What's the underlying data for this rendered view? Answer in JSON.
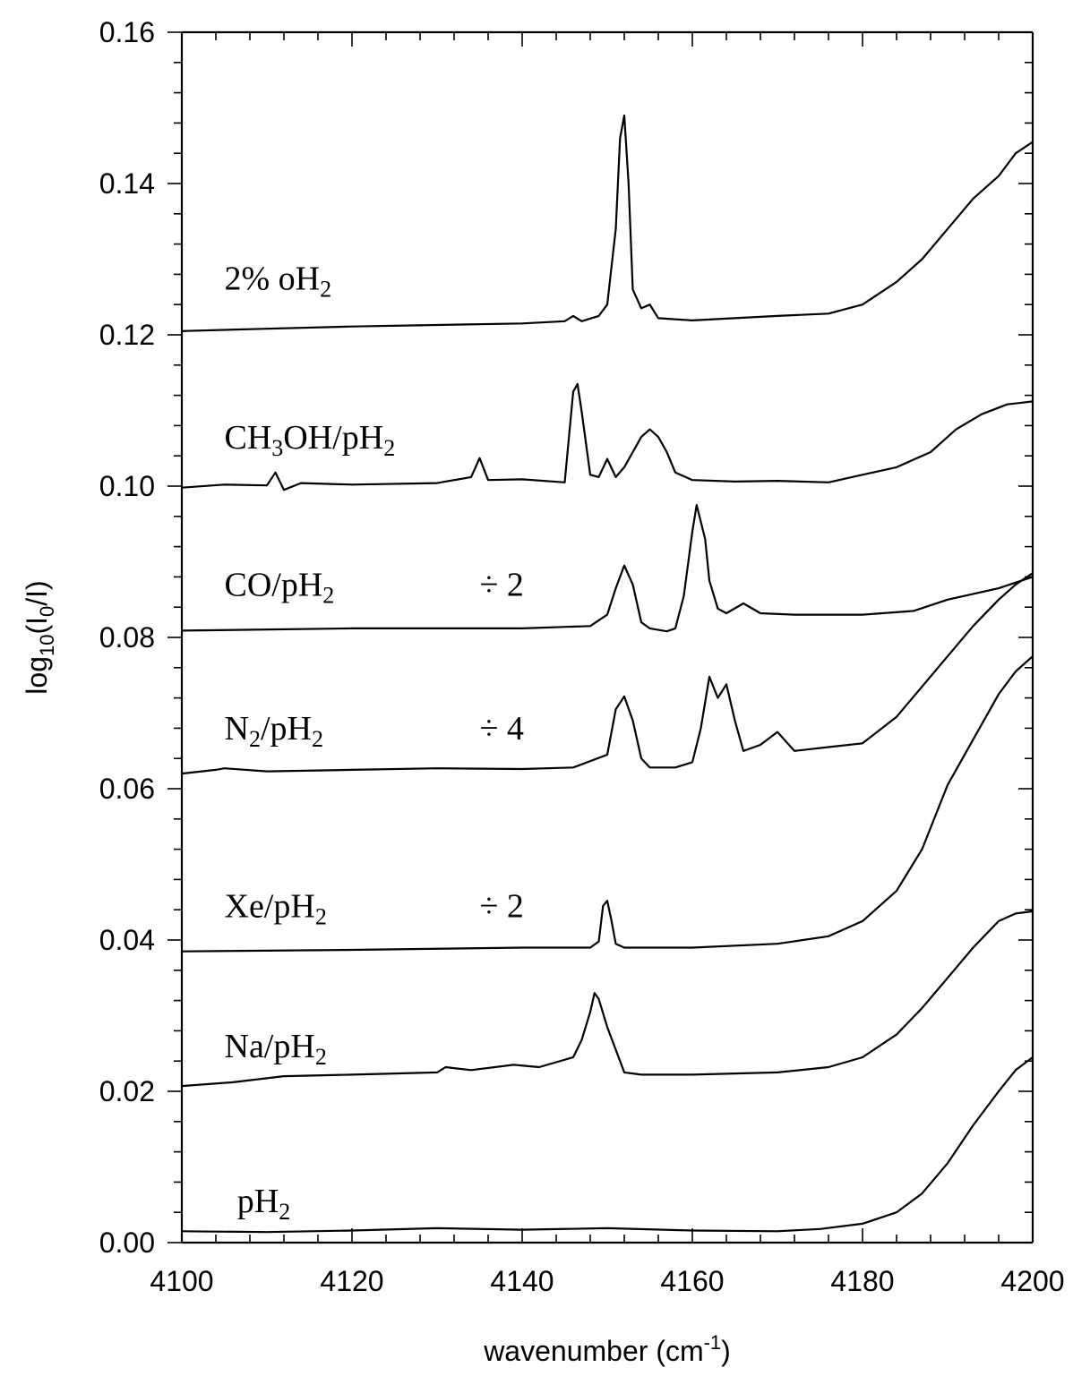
{
  "chart_data": {
    "type": "line",
    "xlabel": "wavenumber (cm",
    "xlabel_sup": "-1",
    "xlabel_tail": ")",
    "ylabel_main": "log",
    "ylabel_sub": "10",
    "ylabel_rest": "(I",
    "ylabel_sub2": "0",
    "ylabel_tail": "/I)",
    "xlim": [
      4100,
      4200
    ],
    "ylim": [
      0.0,
      0.16
    ],
    "x_ticks": [
      4100,
      4120,
      4140,
      4160,
      4180,
      4200
    ],
    "x_tick_labels": [
      "4100",
      "4120",
      "4140",
      "4160",
      "4180",
      "4200"
    ],
    "y_ticks": [
      0.0,
      0.02,
      0.04,
      0.06,
      0.08,
      0.1,
      0.12,
      0.14,
      0.16
    ],
    "y_tick_labels": [
      "0.00",
      "0.02",
      "0.04",
      "0.06",
      "0.08",
      "0.10",
      "0.12",
      "0.14",
      "0.16"
    ],
    "grid": false,
    "series": [
      {
        "name": "2% oH2",
        "label_main": "2% oH",
        "label_sub": "2",
        "label_tail": "",
        "scale_note": "",
        "label_x": 4105,
        "label_y": 0.126,
        "x": [
          4100,
          4110,
          4120,
          4130,
          4140,
          4145,
          4146,
          4147,
          4149,
          4150,
          4151,
          4151.5,
          4152,
          4152.5,
          4153,
          4154,
          4155,
          4156,
          4160,
          4170,
          4176,
          4180,
          4184,
          4187,
          4190,
          4193,
          4196,
          4198,
          4200
        ],
        "y": [
          0.1205,
          0.1208,
          0.1211,
          0.1213,
          0.1215,
          0.1218,
          0.1225,
          0.1218,
          0.1225,
          0.124,
          0.134,
          0.146,
          0.149,
          0.14,
          0.126,
          0.1235,
          0.124,
          0.1222,
          0.1219,
          0.1225,
          0.1228,
          0.124,
          0.127,
          0.13,
          0.134,
          0.138,
          0.141,
          0.144,
          0.1455
        ]
      },
      {
        "name": "CH3OH/pH2",
        "label_main": "CH",
        "label_sub": "3",
        "label_tail": "OH/pH",
        "label_sub_end": "2",
        "scale_note": "",
        "label_x": 4105,
        "label_y": 0.105,
        "x": [
          4100,
          4105,
          4110,
          4111,
          4112,
          4114,
          4120,
          4130,
          4134,
          4135,
          4136,
          4140,
          4145,
          4146,
          4146.5,
          4147,
          4148,
          4149,
          4150,
          4151,
          4152,
          4154,
          4155,
          4156,
          4157,
          4158,
          4160,
          4165,
          4170,
          4176,
          4180,
          4184,
          4188,
          4191,
          4194,
          4197,
          4200
        ],
        "y": [
          0.0998,
          0.1002,
          0.1001,
          0.1018,
          0.0995,
          0.1004,
          0.1002,
          0.1004,
          0.1012,
          0.1037,
          0.1008,
          0.1009,
          0.1005,
          0.1125,
          0.1135,
          0.1098,
          0.1015,
          0.1012,
          0.1036,
          0.1012,
          0.1025,
          0.1065,
          0.1075,
          0.1065,
          0.1045,
          0.1018,
          0.1008,
          0.1006,
          0.1007,
          0.1005,
          0.1015,
          0.1025,
          0.1045,
          0.1075,
          0.1095,
          0.1108,
          0.1112
        ]
      },
      {
        "name": "CO/pH2",
        "label_main": "CO/pH",
        "label_sub": "2",
        "label_tail": "",
        "scale_note": "÷ 2",
        "label_x": 4105,
        "label_y": 0.0855,
        "note_x": 4135,
        "note_y": 0.0855,
        "x": [
          4100,
          4120,
          4140,
          4148,
          4150,
          4151,
          4152,
          4153,
          4154,
          4155,
          4157,
          4158,
          4159,
          4160,
          4160.5,
          4161.5,
          4162,
          4163,
          4164,
          4166,
          4168,
          4172,
          4180,
          4186,
          4190,
          4196,
          4200
        ],
        "y": [
          0.0809,
          0.0812,
          0.0812,
          0.0815,
          0.083,
          0.0865,
          0.0895,
          0.087,
          0.082,
          0.0812,
          0.0808,
          0.0812,
          0.0855,
          0.094,
          0.0975,
          0.093,
          0.0875,
          0.0838,
          0.0832,
          0.0845,
          0.0832,
          0.083,
          0.083,
          0.0835,
          0.085,
          0.0865,
          0.088
        ]
      },
      {
        "name": "N2/pH2",
        "label_main": "N",
        "label_sub": "2",
        "label_tail": "/pH",
        "label_sub_end": "2",
        "scale_note": "÷ 4",
        "label_x": 4105,
        "label_y": 0.0665,
        "note_x": 4135,
        "note_y": 0.0665,
        "x": [
          4100,
          4104,
          4105,
          4110,
          4120,
          4130,
          4140,
          4146,
          4150,
          4151,
          4152,
          4153,
          4154,
          4155,
          4158,
          4160,
          4161,
          4162,
          4163,
          4164,
          4165,
          4166,
          4168,
          4170,
          4172,
          4176,
          4180,
          4184,
          4187,
          4190,
          4193,
          4196,
          4198,
          4200
        ],
        "y": [
          0.062,
          0.0625,
          0.0627,
          0.0623,
          0.0625,
          0.0627,
          0.0626,
          0.0628,
          0.0645,
          0.0705,
          0.0722,
          0.069,
          0.064,
          0.0628,
          0.0628,
          0.0635,
          0.068,
          0.0748,
          0.072,
          0.0738,
          0.069,
          0.065,
          0.0658,
          0.0675,
          0.065,
          0.0655,
          0.066,
          0.0695,
          0.0735,
          0.0775,
          0.0815,
          0.085,
          0.087,
          0.0885
        ]
      },
      {
        "name": "Xe/pH2",
        "label_main": "Xe/pH",
        "label_sub": "2",
        "label_tail": "",
        "scale_note": "÷ 2",
        "label_x": 4105,
        "label_y": 0.043,
        "note_x": 4135,
        "note_y": 0.043,
        "x": [
          4100,
          4120,
          4140,
          4148,
          4149,
          4149.5,
          4150,
          4150.5,
          4151,
          4152,
          4160,
          4170,
          4176,
          4180,
          4184,
          4187,
          4190,
          4193,
          4196,
          4198,
          4200
        ],
        "y": [
          0.0385,
          0.0387,
          0.039,
          0.039,
          0.0398,
          0.0445,
          0.0452,
          0.0425,
          0.0395,
          0.039,
          0.039,
          0.0395,
          0.0405,
          0.0425,
          0.0465,
          0.052,
          0.0605,
          0.0665,
          0.0725,
          0.0755,
          0.0775
        ]
      },
      {
        "name": "Na/pH2",
        "label_main": "Na/pH",
        "label_sub": "2",
        "label_tail": "",
        "scale_note": "",
        "label_x": 4105,
        "label_y": 0.0245,
        "x": [
          4100,
          4106,
          4112,
          4120,
          4130,
          4131,
          4134,
          4139,
          4142,
          4146,
          4147,
          4148,
          4148.5,
          4149,
          4150,
          4151,
          4152,
          4154,
          4160,
          4170,
          4176,
          4180,
          4184,
          4187,
          4190,
          4193,
          4196,
          4198,
          4200
        ],
        "y": [
          0.0207,
          0.0212,
          0.022,
          0.0222,
          0.0225,
          0.0232,
          0.0228,
          0.0235,
          0.0232,
          0.0245,
          0.0268,
          0.0305,
          0.033,
          0.0322,
          0.0285,
          0.0255,
          0.0225,
          0.0222,
          0.0222,
          0.0225,
          0.0232,
          0.0245,
          0.0275,
          0.031,
          0.035,
          0.039,
          0.0425,
          0.0435,
          0.0438
        ]
      },
      {
        "name": "pH2",
        "label_main": "pH",
        "label_sub": "2",
        "label_tail": "",
        "scale_note": "",
        "label_x": 4106.5,
        "label_y": 0.004,
        "x": [
          4100,
          4110,
          4120,
          4130,
          4140,
          4150,
          4160,
          4170,
          4175,
          4180,
          4184,
          4187,
          4190,
          4193,
          4196,
          4198,
          4200
        ],
        "y": [
          0.0015,
          0.0014,
          0.0016,
          0.0019,
          0.0017,
          0.0019,
          0.0016,
          0.0015,
          0.0018,
          0.0025,
          0.004,
          0.0065,
          0.0105,
          0.0155,
          0.02,
          0.0228,
          0.0245
        ]
      }
    ]
  }
}
